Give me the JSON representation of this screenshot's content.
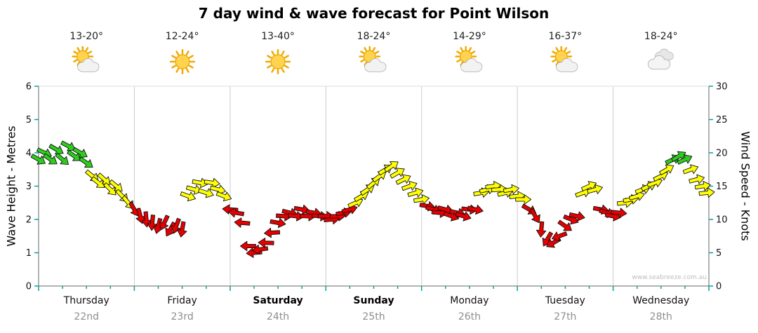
{
  "title": "7 day wind & wave forecast for Point Wilson",
  "watermark": "www.seabreeze.com.au",
  "days": [
    {
      "name": "Thursday",
      "date": "22nd",
      "temp": "13-20°",
      "icon": "sun-cloud",
      "weekend": false
    },
    {
      "name": "Friday",
      "date": "23rd",
      "temp": "12-24°",
      "icon": "sun",
      "weekend": false
    },
    {
      "name": "Saturday",
      "date": "24th",
      "temp": "13-40°",
      "icon": "sun",
      "weekend": true
    },
    {
      "name": "Sunday",
      "date": "25th",
      "temp": "18-24°",
      "icon": "sun-cloud",
      "weekend": true
    },
    {
      "name": "Monday",
      "date": "26th",
      "temp": "14-29°",
      "icon": "sun-cloud",
      "weekend": false
    },
    {
      "name": "Tuesday",
      "date": "27th",
      "temp": "16-37°",
      "icon": "sun-cloud",
      "weekend": false
    },
    {
      "name": "Wednesday",
      "date": "28th",
      "temp": "18-24°",
      "icon": "cloud",
      "weekend": false
    }
  ],
  "chart_data": {
    "type": "wind-arrows",
    "title": "7 day wind & wave forecast for Point Wilson",
    "left_axis": {
      "label": "Wave Height - Metres",
      "min": 0,
      "max": 6,
      "ticks": [
        0,
        1,
        2,
        3,
        4,
        5,
        6
      ]
    },
    "right_axis": {
      "label": "Wind Speed - Knots",
      "min": 0,
      "max": 30,
      "ticks": [
        0,
        5,
        10,
        15,
        20,
        25,
        30
      ]
    },
    "hours_total": 168,
    "colors": {
      "green": "#2ecc1e",
      "yellow": "#ffff00",
      "red": "#e60000",
      "tick": "#00a3a3",
      "grid": "#cccccc",
      "axis": "#666666"
    },
    "color_thresholds": {
      "red_below_knots": 12.25,
      "green_at_or_above_knots": 18.4
    },
    "series_units": [
      "hour",
      "knots",
      "direction_deg"
    ],
    "series": [
      [
        0,
        19,
        30
      ],
      [
        1.5,
        20,
        25
      ],
      [
        3,
        19,
        35
      ],
      [
        4.5,
        20.5,
        30
      ],
      [
        6,
        19,
        40
      ],
      [
        7.5,
        21,
        28
      ],
      [
        9,
        19.5,
        35
      ],
      [
        10.5,
        20,
        30
      ],
      [
        12,
        18.5,
        35
      ],
      [
        13.5,
        16.5,
        40
      ],
      [
        15,
        15.5,
        38
      ],
      [
        16.5,
        16,
        42
      ],
      [
        18,
        14.5,
        45
      ],
      [
        19.5,
        15,
        40
      ],
      [
        21,
        13.5,
        45
      ],
      [
        22.5,
        12.5,
        50
      ],
      [
        24,
        11.5,
        60
      ],
      [
        25.5,
        10.5,
        75
      ],
      [
        27,
        10,
        85
      ],
      [
        28.5,
        9.5,
        95
      ],
      [
        30,
        9,
        105
      ],
      [
        31.5,
        9.5,
        115
      ],
      [
        33,
        8.5,
        120
      ],
      [
        34.5,
        9,
        110
      ],
      [
        36,
        8.5,
        100
      ],
      [
        37.5,
        13.5,
        20
      ],
      [
        39,
        14.5,
        15
      ],
      [
        40.5,
        15.5,
        10
      ],
      [
        42,
        14,
        18
      ],
      [
        43.5,
        15.5,
        8
      ],
      [
        45,
        14.5,
        14
      ],
      [
        46.5,
        13.5,
        20
      ],
      [
        48,
        11.5,
        185
      ],
      [
        49.5,
        11,
        190
      ],
      [
        51,
        9.5,
        185
      ],
      [
        52.5,
        6,
        180
      ],
      [
        54,
        5,
        175
      ],
      [
        55.5,
        5.5,
        172
      ],
      [
        57,
        6.5,
        182
      ],
      [
        58.5,
        8,
        176
      ],
      [
        60,
        9.5,
        10
      ],
      [
        61.5,
        10.5,
        4
      ],
      [
        63,
        11,
        14
      ],
      [
        64.5,
        10.5,
        6
      ],
      [
        66,
        11.5,
        10
      ],
      [
        67.5,
        10.5,
        2
      ],
      [
        69,
        11,
        10
      ],
      [
        70.5,
        10.5,
        5
      ],
      [
        72,
        10.5,
        0
      ],
      [
        73.5,
        10,
        -5
      ],
      [
        75,
        10.5,
        -2
      ],
      [
        76.5,
        11,
        -10
      ],
      [
        78,
        11.5,
        -16
      ],
      [
        79.5,
        12.5,
        -24
      ],
      [
        81,
        13.5,
        -30
      ],
      [
        82.5,
        14.5,
        -34
      ],
      [
        84,
        15.5,
        -40
      ],
      [
        85.5,
        16.5,
        -36
      ],
      [
        87,
        17.5,
        -32
      ],
      [
        88.5,
        18,
        -34
      ],
      [
        90,
        17,
        -30
      ],
      [
        91.5,
        16,
        -26
      ],
      [
        93,
        15,
        -20
      ],
      [
        94.5,
        14,
        -16
      ],
      [
        96,
        13,
        -10
      ],
      [
        97.5,
        12,
        10
      ],
      [
        99,
        11.5,
        16
      ],
      [
        100.5,
        11,
        6
      ],
      [
        102,
        11.5,
        14
      ],
      [
        103.5,
        10.5,
        20
      ],
      [
        105,
        11,
        12
      ],
      [
        106.5,
        10.5,
        16
      ],
      [
        108,
        11.5,
        6
      ],
      [
        109.5,
        11.5,
        12
      ],
      [
        111,
        14,
        -10
      ],
      [
        112.5,
        14.5,
        -14
      ],
      [
        114,
        15,
        -8
      ],
      [
        115.5,
        14.5,
        -4
      ],
      [
        117,
        14,
        -14
      ],
      [
        118.5,
        14.5,
        -10
      ],
      [
        120,
        13.5,
        -6
      ],
      [
        121.5,
        13,
        0
      ],
      [
        123,
        11.5,
        30
      ],
      [
        124.5,
        10.5,
        60
      ],
      [
        126,
        8.5,
        95
      ],
      [
        127.5,
        7,
        120
      ],
      [
        129,
        6.5,
        150
      ],
      [
        130.5,
        7.5,
        160
      ],
      [
        132,
        9,
        35
      ],
      [
        133.5,
        10,
        22
      ],
      [
        135,
        10.5,
        12
      ],
      [
        136.5,
        14,
        -20
      ],
      [
        138,
        15,
        -24
      ],
      [
        139.5,
        14.5,
        -16
      ],
      [
        141,
        11.5,
        10
      ],
      [
        142.5,
        11,
        16
      ],
      [
        144,
        10.5,
        10
      ],
      [
        145.5,
        11,
        6
      ],
      [
        147,
        12.5,
        -6
      ],
      [
        148.5,
        13,
        -10
      ],
      [
        150,
        13.5,
        -16
      ],
      [
        151.5,
        14.5,
        -20
      ],
      [
        153,
        15,
        -24
      ],
      [
        154.5,
        15.5,
        -20
      ],
      [
        156,
        16.5,
        -26
      ],
      [
        157.5,
        17.5,
        -30
      ],
      [
        159,
        19,
        -26
      ],
      [
        160.5,
        19.5,
        -30
      ],
      [
        162,
        19,
        -24
      ],
      [
        163.5,
        17.5,
        -20
      ],
      [
        165,
        16,
        -14
      ],
      [
        166.5,
        15,
        -10
      ],
      [
        167.5,
        14,
        -6
      ]
    ]
  }
}
